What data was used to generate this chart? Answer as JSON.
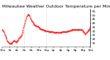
{
  "title": "Milwaukee Weather Outdoor Temperature per Minute (Last 24 Hours)",
  "line_color": "#ff0000",
  "bg_color": "#ffffff",
  "plot_bg_color": "#ffffff",
  "vline_positions": [
    0.25,
    0.5
  ],
  "vline_color": "#999999",
  "y_values": [
    32,
    31,
    30,
    28,
    26,
    24,
    22,
    20,
    18,
    17,
    16,
    15,
    14,
    14,
    14,
    14,
    15,
    16,
    17,
    18,
    18,
    17,
    16,
    16,
    17,
    18,
    19,
    20,
    21,
    22,
    23,
    24,
    26,
    28,
    31,
    34,
    37,
    40,
    43,
    46,
    48,
    50,
    51,
    51,
    50,
    49,
    47,
    45,
    43,
    42,
    41,
    40,
    39,
    38,
    37,
    37,
    36,
    36,
    36,
    35,
    34,
    34,
    33,
    33,
    33,
    32,
    32,
    32,
    31,
    31,
    31,
    30,
    30,
    30,
    30,
    30,
    29,
    29,
    29,
    29,
    29,
    29,
    29,
    29,
    28,
    28,
    28,
    28,
    28,
    28,
    28,
    28,
    28,
    28,
    28,
    28,
    28,
    28,
    29,
    29,
    29,
    29,
    29,
    29,
    29,
    29,
    29,
    30,
    30,
    30,
    30,
    31,
    31,
    31,
    32,
    32,
    32,
    32,
    32,
    32,
    32,
    32,
    32,
    32,
    32,
    32,
    32,
    32,
    32,
    32,
    32,
    31,
    30,
    29,
    28,
    27,
    26,
    27,
    28,
    29,
    30,
    31,
    32,
    33,
    34
  ],
  "ylim_min": 10,
  "ylim_max": 58,
  "yticks": [
    15,
    20,
    25,
    30,
    35,
    40,
    45,
    50,
    55
  ],
  "xtick_labels": [
    "12a",
    "2a",
    "4a",
    "6a",
    "8a",
    "10a",
    "12p",
    "2p",
    "4p",
    "6p",
    "8p",
    "10p",
    "12a"
  ],
  "title_fontsize": 4.5,
  "tick_fontsize": 3.2,
  "line_width": 0.6,
  "marker_size": 0.8
}
